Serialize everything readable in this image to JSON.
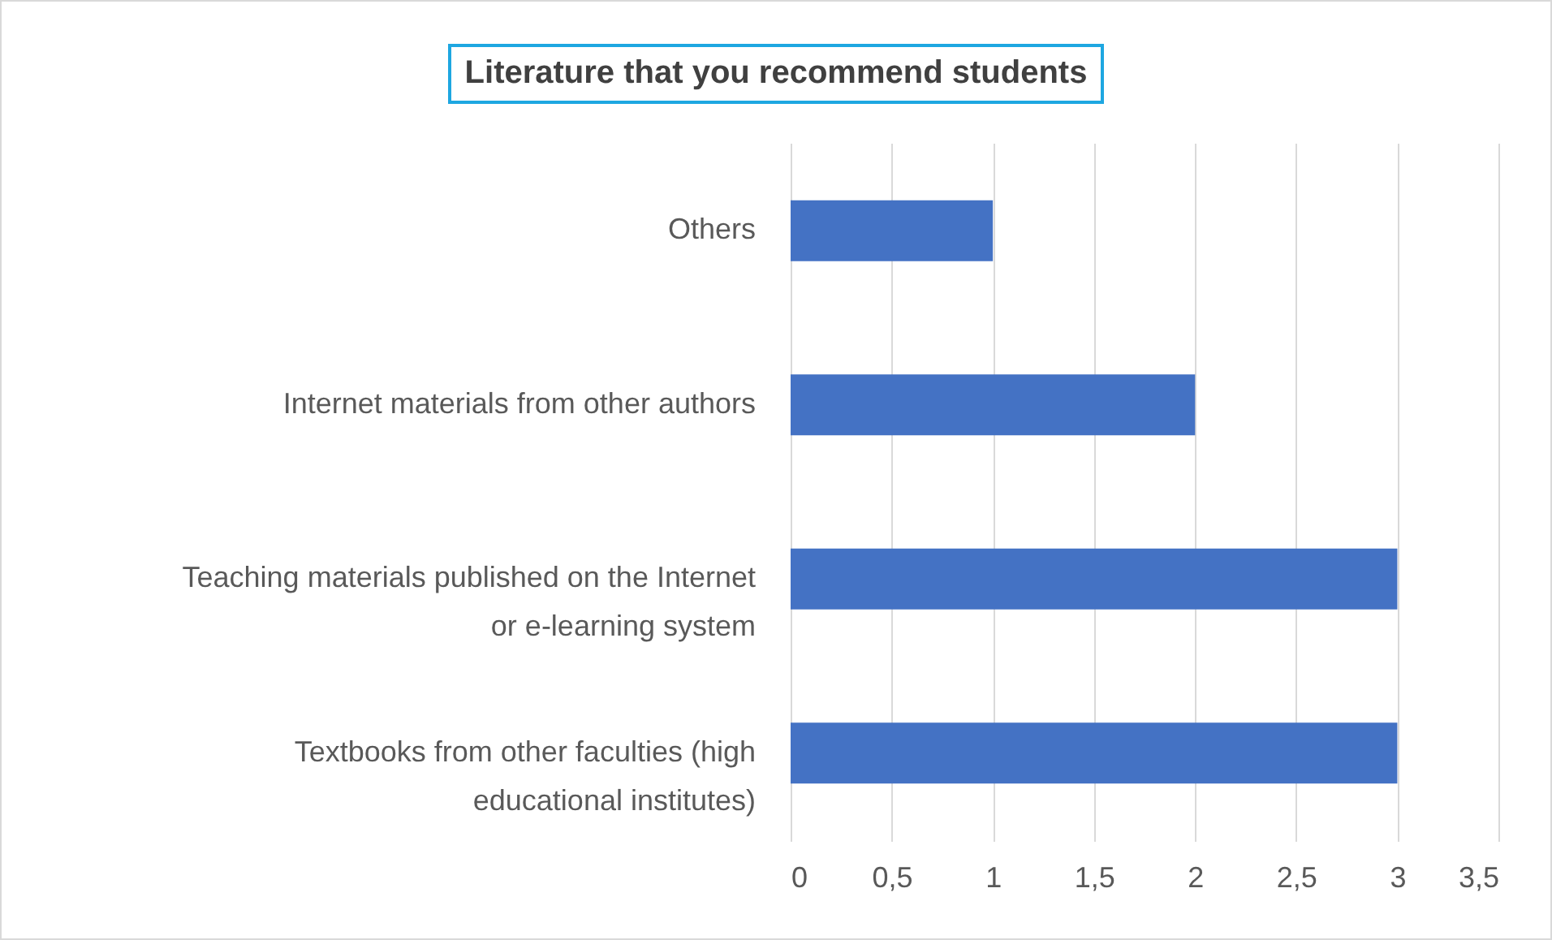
{
  "chart_data": {
    "type": "bar",
    "orientation": "horizontal",
    "title": "Literature that you recommend students",
    "categories": [
      "Others",
      "Internet materials from other authors",
      "Teaching materials published on the Internet or e-learning system",
      "Textbooks from other faculties (high educational institutes)"
    ],
    "values": [
      1,
      2,
      3,
      3
    ],
    "color": "#4472c4",
    "xlim": [
      0,
      3.5
    ],
    "xticks": [
      0,
      {
        "value": 0.5,
        "label": "0,5"
      },
      1,
      {
        "value": 1.5,
        "label": "1,5"
      },
      2,
      {
        "value": 2.5,
        "label": "2,5"
      },
      3,
      {
        "value": 3.5,
        "label": "3,5"
      }
    ],
    "grid": "x"
  }
}
